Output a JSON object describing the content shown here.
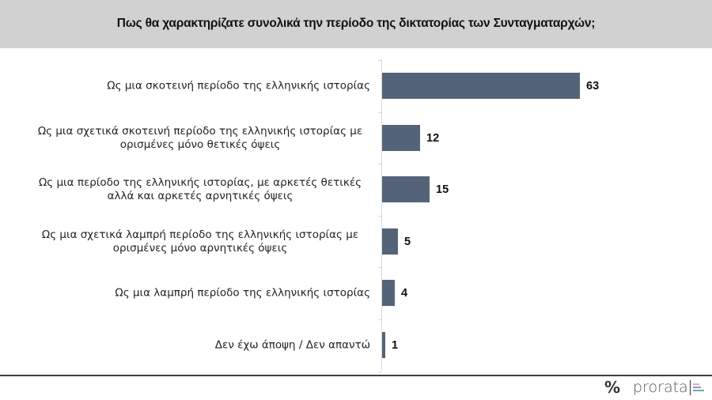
{
  "header": {
    "title": "Πως θα χαρακτηρίζατε συνολικά την περίοδο της δικτατορίας των Συνταγματαρχών;"
  },
  "colors": {
    "header_bg": "#d2d1d2",
    "bar": "#546478",
    "axis": "#d9d9d9",
    "footer_line": "#404040",
    "logo_bar_1": "#e7a8d0",
    "logo_bar_2": "#9b8fb8",
    "logo_bar_3": "#5fb3b3"
  },
  "footer": {
    "percent_symbol": "%",
    "brand": "prorata"
  },
  "chart_data": {
    "type": "bar",
    "orientation": "horizontal",
    "title": "Πως θα χαρακτηρίζατε συνολικά την περίοδο της δικτατορίας των Συνταγματαρχών;",
    "xlabel": "",
    "ylabel": "",
    "grid": false,
    "legend": null,
    "xlim": [
      0,
      63
    ],
    "categories": [
      "Ως μια σκοτεινή περίοδο της ελληνικής ιστορίας",
      "Ως μια σχετικά σκοτεινή περίοδο της ελληνικής ιστορίας με ορισμένες μόνο θετικές όψεις",
      "Ως μια περίοδο της ελληνικής ιστορίας, με αρκετές θετικές αλλά και αρκετές αρνητικές όψεις",
      "Ως μια σχετικά λαμπρή περίοδο της ελληνικής ιστορίας με ορισμένες μόνο αρνητικές όψεις",
      "Ως μια λαμπρή περίοδο της ελληνικής ιστορίας",
      "Δεν έχω άποψη / Δεν απαντώ"
    ],
    "values": [
      63,
      12,
      15,
      5,
      4,
      1
    ],
    "rows": [
      {
        "line1": "Ως μια σκοτεινή περίοδο της ελληνικής ιστορίας",
        "line2": "",
        "value": 63,
        "value_label": "63"
      },
      {
        "line1": "Ως μια σχετικά σκοτεινή περίοδο της ελληνικής ιστορίας με",
        "line2": "ορισμένες μόνο θετικές όψεις",
        "value": 12,
        "value_label": "12"
      },
      {
        "line1": "Ως μια περίοδο της ελληνικής ιστορίας, με αρκετές θετικές",
        "line2": "αλλά και αρκετές αρνητικές όψεις",
        "value": 15,
        "value_label": "15"
      },
      {
        "line1": "Ως μια σχετικά λαμπρή περίοδο της ελληνικής ιστορίας με",
        "line2": "ορισμένες μόνο αρνητικές όψεις",
        "value": 5,
        "value_label": "5"
      },
      {
        "line1": "Ως μια λαμπρή περίοδο της ελληνικής ιστορίας",
        "line2": "",
        "value": 4,
        "value_label": "4"
      },
      {
        "line1": "Δεν έχω άποψη / Δεν απαντώ",
        "line2": "",
        "value": 1,
        "value_label": "1"
      }
    ]
  }
}
